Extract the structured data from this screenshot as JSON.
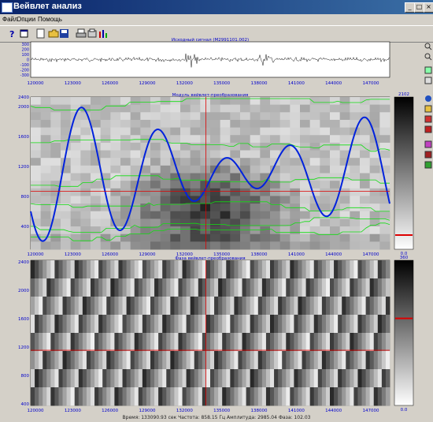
{
  "window": {
    "title": "Вейвлет анализ",
    "buttons": [
      "_",
      "□",
      "×"
    ]
  },
  "menu": [
    "Файл",
    "Опции",
    "Помощь"
  ],
  "toolbar": [
    "help",
    "open-folder",
    "save",
    "print",
    "print-setup",
    "equalizer"
  ],
  "signal_panel": {
    "title": "Исходный сигнал (M2991101.002)",
    "yticks": [
      "300",
      "200",
      "100",
      "0",
      "-100",
      "-200",
      "-300"
    ],
    "xticks": [
      "120000",
      "123000",
      "126000",
      "129000",
      "132000",
      "135000",
      "138000",
      "141000",
      "144000",
      "147000"
    ]
  },
  "modulus_panel": {
    "title": "Модуль вейвлет-преобразования",
    "yticks": [
      "2000",
      "1600",
      "1200",
      "800",
      "400"
    ],
    "xticks": [
      "120000",
      "123000",
      "126000",
      "129000",
      "132000",
      "135000",
      "138000",
      "141000",
      "144000",
      "147000"
    ],
    "scale_top": "2102",
    "scale_bottom": "0.0"
  },
  "phase_panel": {
    "title": "Фаза вейвлет-преобразования",
    "yticks": [
      "2400",
      "2000",
      "1600",
      "1200",
      "800",
      "400"
    ],
    "xticks": [
      "120000",
      "123000",
      "126000",
      "129000",
      "132000",
      "135000",
      "138000",
      "141000",
      "144000",
      "147000"
    ],
    "scale_top": "360",
    "scale_bottom": "0.0"
  },
  "modulus_ytop": "2400",
  "status": "Время: 133090.93 сек   Частота: 858.15 Гц   Амплитуда: 2985.04   Фаза: 102.03",
  "colors": {
    "title_bar": "#0a246a",
    "plot_bg": "#ffffff",
    "tick_text": "#0000cc",
    "curve": "#0022dd",
    "ridges": "#11dd11",
    "cursor": "#dd0000"
  },
  "icons": [
    "zoom-in-icon",
    "zoom-out-icon",
    "refresh-icon",
    "list-icon",
    "globe-icon",
    "chart-icon",
    "palette-icon",
    "map-icon",
    "tree-icon",
    "grid-icon",
    "settings-icon"
  ]
}
